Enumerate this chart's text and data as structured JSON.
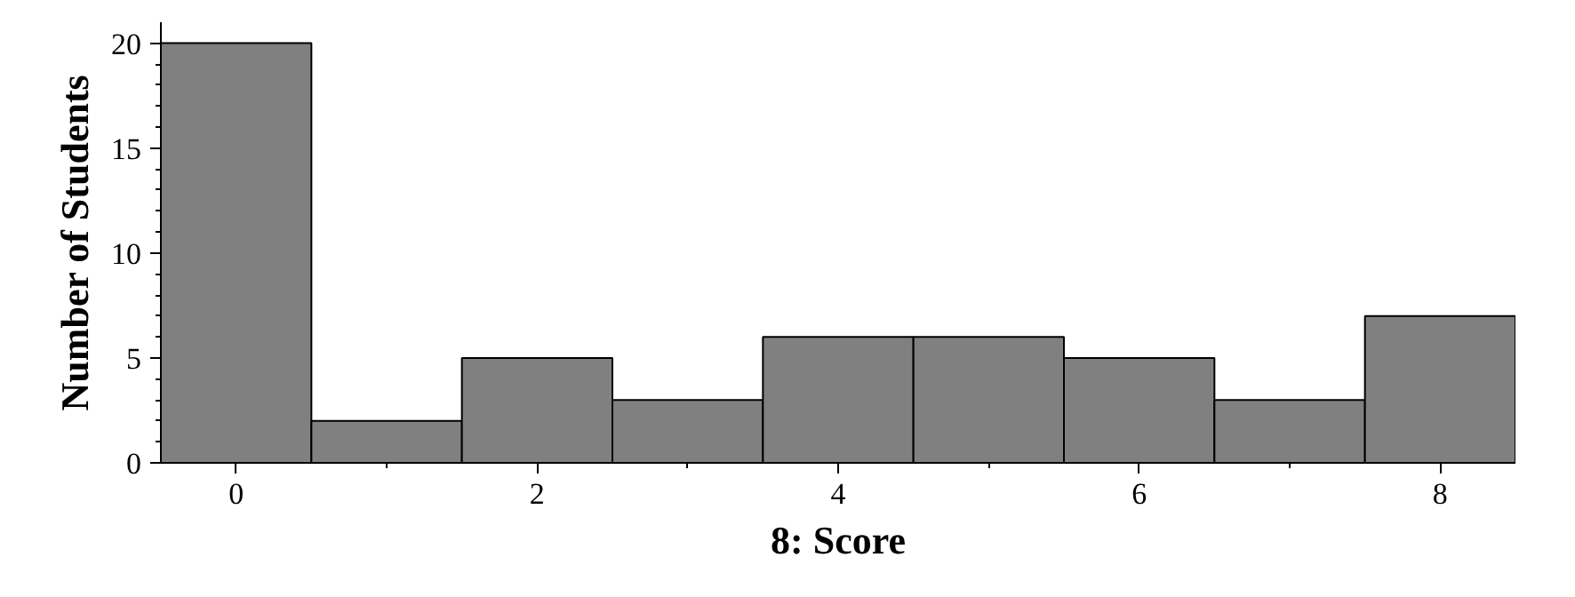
{
  "chart_data": {
    "type": "histogram",
    "xlabel": "8: Score",
    "ylabel": "Number of Students",
    "bins": [
      -0.5,
      0.5,
      1.5,
      2.5,
      3.5,
      4.5,
      5.5,
      6.5,
      7.5,
      8.5
    ],
    "values": [
      20,
      2,
      5,
      3,
      6,
      6,
      5,
      3,
      7
    ],
    "color": "#808080",
    "xlim": [
      -0.5,
      8.5
    ],
    "ylim": [
      0,
      21
    ],
    "xticks": [
      0,
      {
        "value": 1,
        "label": null
      },
      2,
      {
        "value": 3,
        "label": null
      },
      4,
      {
        "value": 5,
        "label": null
      },
      6,
      {
        "value": 7,
        "label": null
      },
      8
    ],
    "yticks": [
      0,
      {
        "value": 1,
        "label": null
      },
      {
        "value": 2,
        "label": null
      },
      {
        "value": 3,
        "label": null
      },
      {
        "value": 4,
        "label": null
      },
      5,
      {
        "value": 6,
        "label": null
      },
      {
        "value": 7,
        "label": null
      },
      {
        "value": 8,
        "label": null
      },
      {
        "value": 9,
        "label": null
      },
      10,
      {
        "value": 11,
        "label": null
      },
      {
        "value": 12,
        "label": null
      },
      {
        "value": 13,
        "label": null
      },
      {
        "value": 14,
        "label": null
      },
      15,
      {
        "value": 16,
        "label": null
      },
      {
        "value": 17,
        "label": null
      },
      {
        "value": 18,
        "label": null
      },
      {
        "value": 19,
        "label": null
      },
      20
    ],
    "grid": false
  }
}
